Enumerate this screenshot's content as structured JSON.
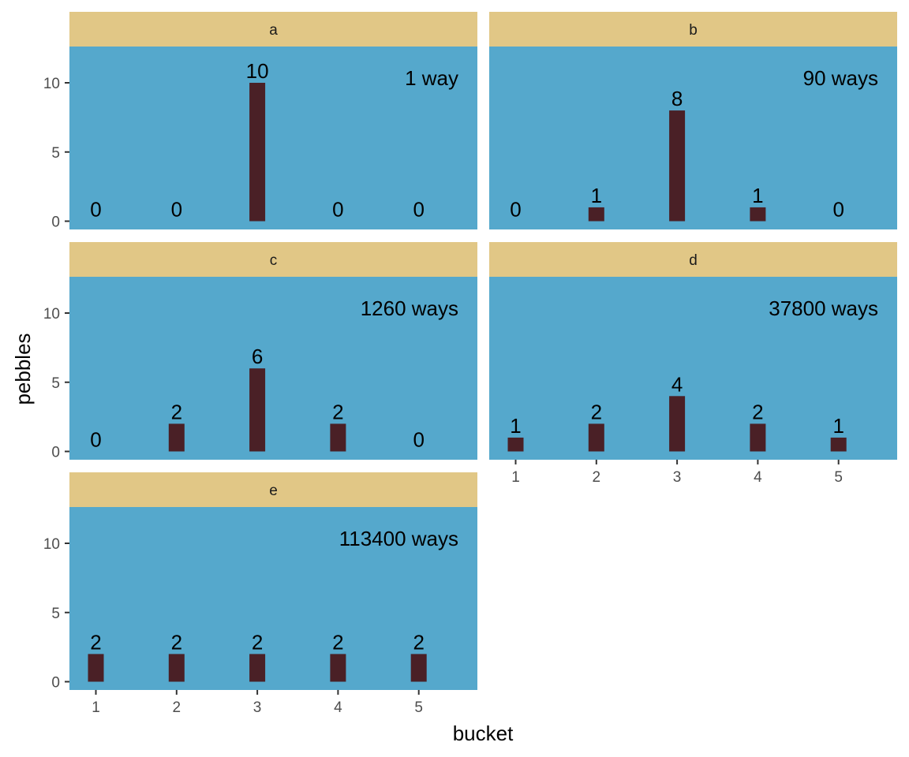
{
  "colors": {
    "panel_background": "#55A8CC",
    "strip_background": "#E1C786",
    "bar_fill": "#4A2026",
    "tick_color": "#333333"
  },
  "chart_data": {
    "type": "bar",
    "xlabel": "bucket",
    "ylabel": "pebbles",
    "categories": [
      "1",
      "2",
      "3",
      "4",
      "5"
    ],
    "ylim": [
      0,
      14.3
    ],
    "y_ticks": [
      0,
      5,
      10
    ],
    "grid": false,
    "facets": [
      {
        "name": "a",
        "values": [
          0,
          0,
          10,
          0,
          0
        ],
        "annotation": "1 way"
      },
      {
        "name": "b",
        "values": [
          0,
          1,
          8,
          1,
          0
        ],
        "annotation": "90 ways"
      },
      {
        "name": "c",
        "values": [
          0,
          2,
          6,
          2,
          0
        ],
        "annotation": "1260 ways"
      },
      {
        "name": "d",
        "values": [
          1,
          2,
          4,
          2,
          1
        ],
        "annotation": "37800 ways"
      },
      {
        "name": "e",
        "values": [
          2,
          2,
          2,
          2,
          2
        ],
        "annotation": "113400 ways"
      }
    ]
  }
}
